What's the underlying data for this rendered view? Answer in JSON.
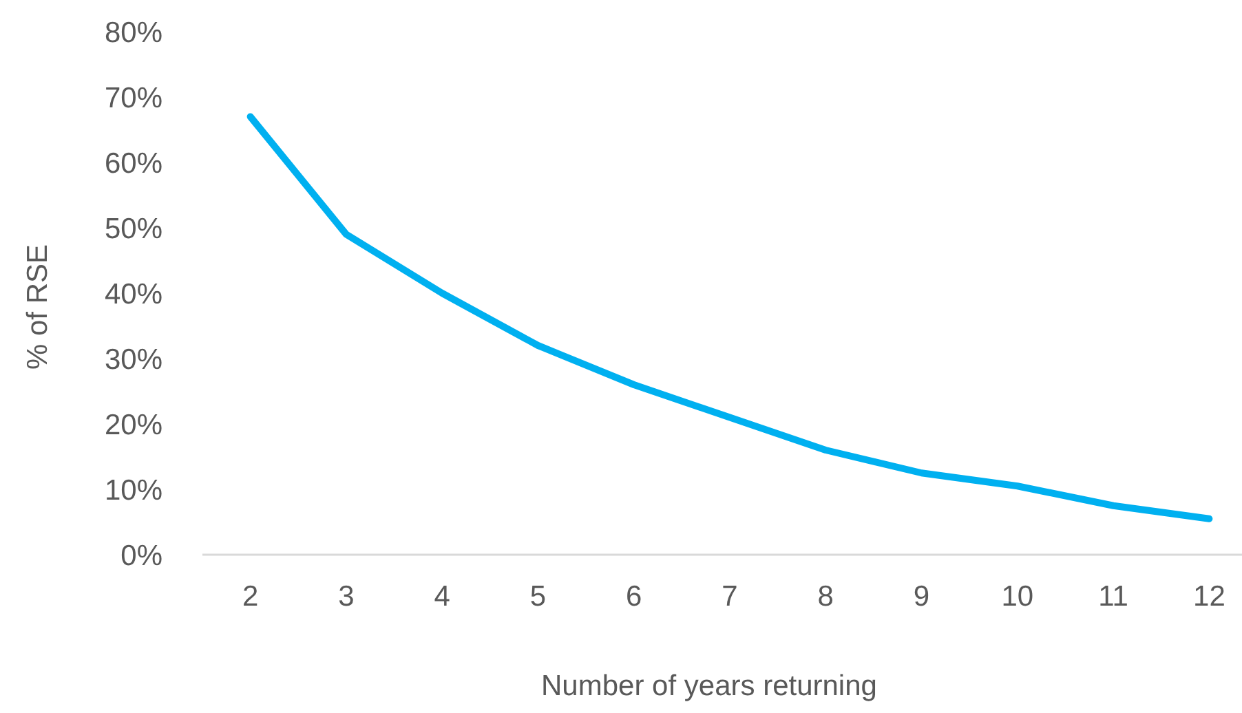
{
  "chart_data": {
    "type": "line",
    "xlabel": "Number of years returning",
    "ylabel": "% of RSE",
    "categories": [
      "2",
      "3",
      "4",
      "5",
      "6",
      "7",
      "8",
      "9",
      "10",
      "11",
      "12"
    ],
    "series": [
      {
        "color": "#00b0f0",
        "values": [
          67,
          49,
          40,
          32,
          26,
          21,
          16,
          12.5,
          10.5,
          7.5,
          5.5
        ]
      }
    ],
    "ylim": [
      0,
      80
    ],
    "yticks": [
      {
        "value": 0,
        "label": "0%"
      },
      {
        "value": 10,
        "label": "10%"
      },
      {
        "value": 20,
        "label": "20%"
      },
      {
        "value": 30,
        "label": "30%"
      },
      {
        "value": 40,
        "label": "40%"
      },
      {
        "value": 50,
        "label": "50%"
      },
      {
        "value": 60,
        "label": "60%"
      },
      {
        "value": 70,
        "label": "70%"
      },
      {
        "value": 80,
        "label": "80%"
      }
    ],
    "grid": false,
    "marker": "none",
    "line_style": "solid"
  }
}
